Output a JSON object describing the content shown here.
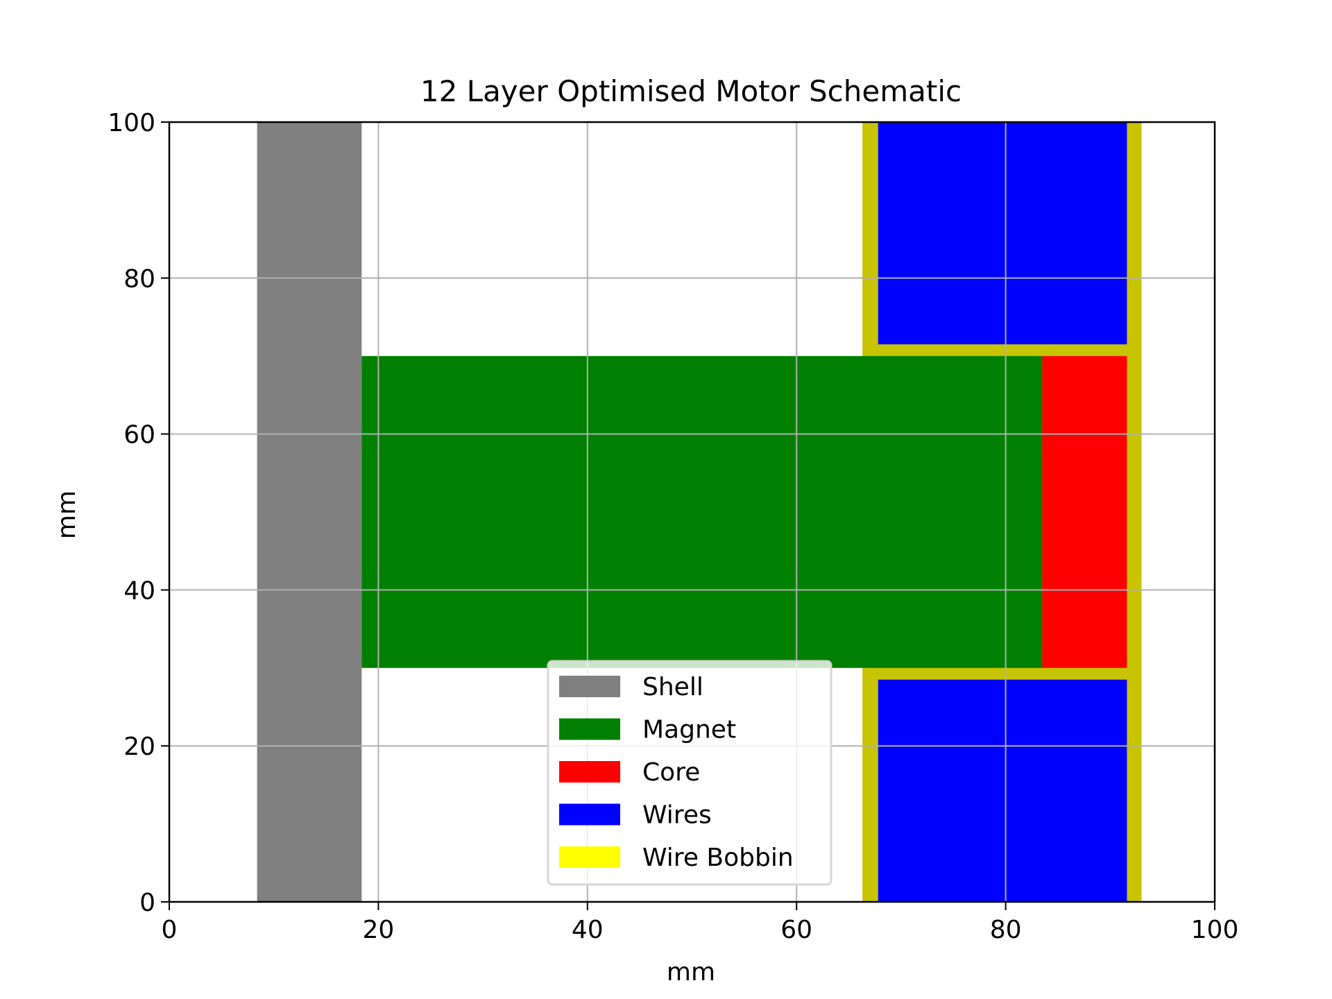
{
  "chart_data": {
    "type": "schematic",
    "title": "12 Layer Optimised Motor Schematic",
    "xlabel": "mm",
    "ylabel": "mm",
    "xlim": [
      0,
      100
    ],
    "ylim": [
      0,
      100
    ],
    "xticks": [
      0,
      20,
      40,
      60,
      80,
      100
    ],
    "yticks": [
      0,
      20,
      40,
      60,
      80,
      100
    ],
    "grid": true,
    "legend_position": "lower-center",
    "colors": {
      "Shell": "#808080",
      "Magnet": "#008000",
      "Core": "#ff0000",
      "Wires": "#0000ff",
      "Wire Bobbin": "#ffff00",
      "bobbin_drawn": "#c8c400",
      "grid": "#b0b0b0"
    },
    "legend": [
      "Shell",
      "Magnet",
      "Core",
      "Wires",
      "Wire Bobbin"
    ],
    "regions": [
      {
        "name": "Shell",
        "x": [
          8.4,
          18.4
        ],
        "y": [
          0,
          100
        ]
      },
      {
        "name": "Wire Bobbin",
        "x": [
          66.3,
          93.0
        ],
        "y": [
          0,
          100
        ]
      },
      {
        "name": "Magnet",
        "x": [
          18.4,
          83.5
        ],
        "y": [
          30.0,
          70.0
        ]
      },
      {
        "name": "Core",
        "x": [
          83.5,
          91.6
        ],
        "y": [
          30.0,
          70.0
        ]
      },
      {
        "name": "Wires",
        "x": [
          67.8,
          91.6
        ],
        "y": [
          71.5,
          100
        ]
      },
      {
        "name": "Wires",
        "x": [
          67.8,
          91.6
        ],
        "y": [
          0,
          28.5
        ]
      }
    ]
  }
}
